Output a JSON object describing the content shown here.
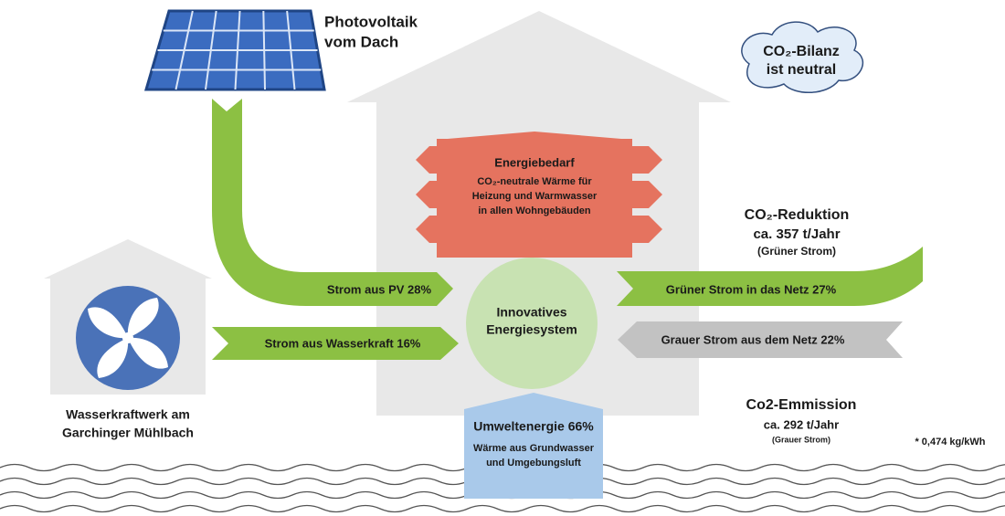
{
  "photovoltaik": {
    "lines": [
      "Photovoltaik",
      "vom Dach"
    ]
  },
  "hydro_plant": {
    "lines": [
      "Wasserkraftwerk am",
      "Garchinger Mühlbach"
    ]
  },
  "cloud": {
    "lines": [
      "CO₂-Bilanz",
      "ist neutral"
    ]
  },
  "energy_demand": {
    "title": "Energiebedarf",
    "lines": [
      "CO₂-neutrale Wärme für",
      "Heizung und Warmwasser",
      "in allen Wohngebäuden"
    ]
  },
  "core": {
    "lines": [
      "Innovatives",
      "Energiesystem"
    ]
  },
  "flows": [
    "Strom aus PV 28%",
    "Strom aus Wasserkraft 16%",
    "Grüner Strom in das Netz 27%",
    "Grauer Strom aus dem Netz 22%"
  ],
  "ambient": {
    "title": "Umweltenergie 66%",
    "lines": [
      "Wärme aus Grundwasser",
      "und Umgebungsluft"
    ]
  },
  "co2_reduction": {
    "title": "CO₂-Reduktion",
    "lines": [
      "ca. 357 t/Jahr",
      "(Grüner Strom)"
    ]
  },
  "co2_emission": {
    "title": "Co2-Emmission",
    "lines": [
      "ca. 292 t/Jahr",
      "(Grauer Strom)"
    ]
  },
  "footnote": "* 0,474 kg/kWh"
}
